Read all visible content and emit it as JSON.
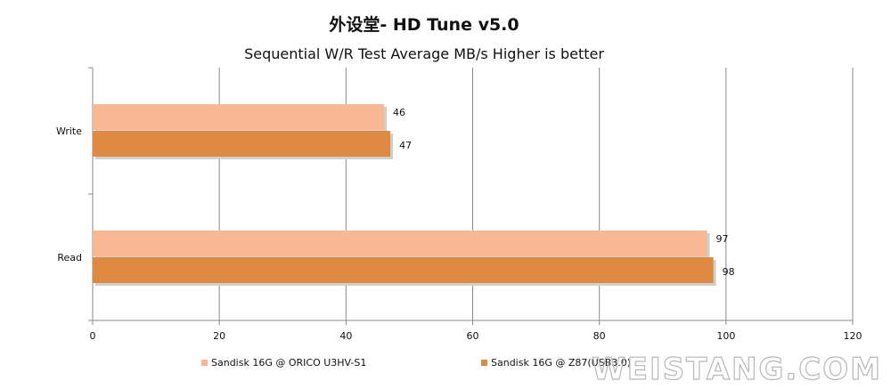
{
  "chart_data": {
    "type": "bar",
    "orientation": "horizontal",
    "title": "外设堂- HD Tune v5.0",
    "subtitle": "Sequential W/R Test  Average MB/s   Higher is better",
    "categories": [
      "Write",
      "Read"
    ],
    "series": [
      {
        "name": "Sandisk 16G @ ORICO U3HV-S1",
        "values": [
          46,
          97
        ],
        "color": "#f9b894"
      },
      {
        "name": "Sandisk 16G @ Z87(USB3.0)",
        "values": [
          47,
          98
        ],
        "color": "#de8a43"
      }
    ],
    "xlim": [
      0,
      120
    ],
    "xticks": [
      0,
      20,
      40,
      60,
      80,
      100,
      120
    ],
    "grid": true,
    "legend_position": "bottom"
  },
  "watermark": "WEISTANG.COM"
}
